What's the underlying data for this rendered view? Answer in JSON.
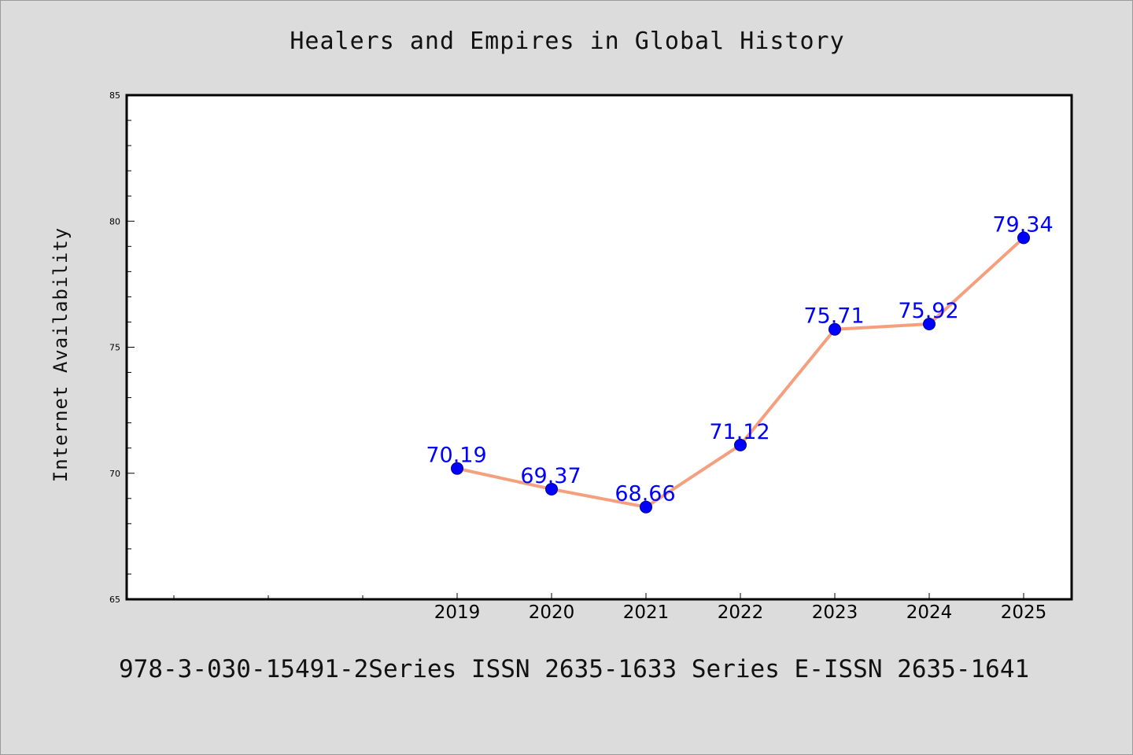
{
  "chart_data": {
    "type": "line",
    "title": "Healers and Empires in Global History",
    "xlabel": "",
    "ylabel": "Internet Availability",
    "categories": [
      "2019",
      "2020",
      "2021",
      "2022",
      "2023",
      "2024",
      "2025"
    ],
    "series": [
      {
        "values": [
          70.19,
          69.37,
          68.66,
          71.12,
          75.71,
          75.92,
          79.34
        ],
        "data_labels": [
          "70.19",
          "69.37",
          "68.66",
          "71.12",
          "75.71",
          "75.92",
          "79.34"
        ]
      }
    ],
    "ylim": [
      65,
      85
    ],
    "y_ticks": [
      "65",
      "70",
      "75",
      "80",
      "85"
    ],
    "grid": false,
    "line_color": "#f4a07f",
    "marker_color": "#0000ff",
    "label_color": "#0000ff"
  },
  "footer": {
    "text": "978-3-030-15491-2Series ISSN 2635-1633 Series E-ISSN 2635-1641"
  }
}
